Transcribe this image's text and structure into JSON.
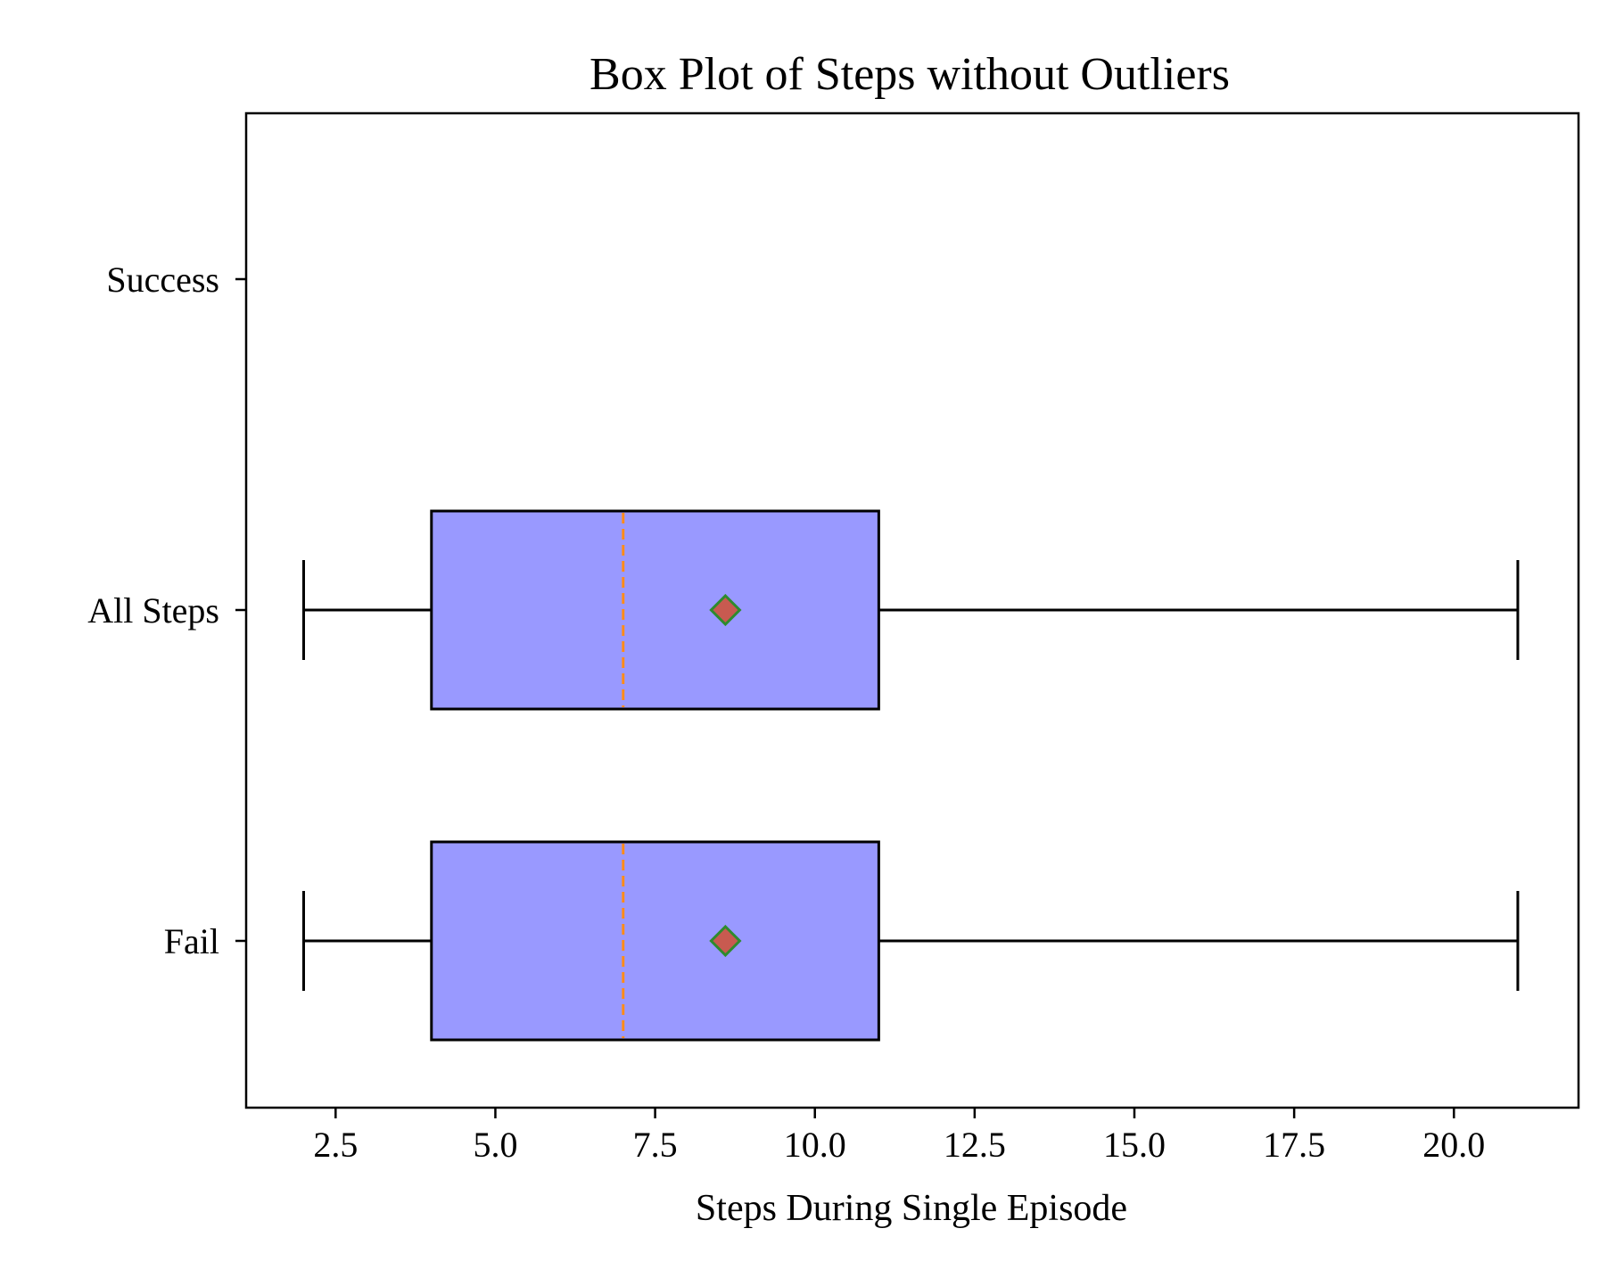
{
  "chart_data": {
    "type": "box",
    "title": "Box Plot of Steps without Outliers",
    "xlabel": "Steps During Single Episode",
    "ylabel": "",
    "orientation": "horizontal",
    "xlim": [
      1.1,
      21.95
    ],
    "x_ticks": [
      2.5,
      5.0,
      7.5,
      10.0,
      12.5,
      15.0,
      17.5,
      20.0
    ],
    "x_tick_labels": [
      "2.5",
      "5.0",
      "7.5",
      "10.0",
      "12.5",
      "15.0",
      "17.5",
      "20.0"
    ],
    "categories": [
      "Success",
      "All Steps",
      "Fail"
    ],
    "boxes": [
      {
        "category": "Success",
        "empty": true
      },
      {
        "category": "All Steps",
        "whisker_low": 2,
        "q1": 4,
        "median": 7,
        "q3": 11,
        "whisker_high": 21,
        "mean": 8.6
      },
      {
        "category": "Fail",
        "whisker_low": 2,
        "q1": 4,
        "median": 7,
        "q3": 11,
        "whisker_high": 21,
        "mean": 8.6
      }
    ],
    "grid": false,
    "legend": "none",
    "colors": {
      "box_fill": "#9999ff",
      "box_edge": "#000000",
      "median_line": "#ff8c1a",
      "mean_marker_fill": "#c85a50",
      "mean_marker_edge": "#2e8b2e",
      "whisker": "#000000",
      "axes": "#000000"
    }
  }
}
